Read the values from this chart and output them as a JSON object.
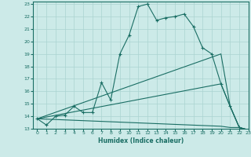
{
  "xlabel": "Humidex (Indice chaleur)",
  "ylabel": "",
  "xlim": [
    -0.5,
    23
  ],
  "ylim": [
    13,
    23.2
  ],
  "background_color": "#cceae8",
  "grid_color": "#aad4d0",
  "line_color": "#1a6e64",
  "line1_x": [
    0,
    1,
    2,
    3,
    4,
    5,
    6,
    7,
    8,
    9,
    10,
    11,
    12,
    13,
    14,
    15,
    16,
    17,
    18,
    19,
    20,
    21,
    22,
    23
  ],
  "line1_y": [
    13.8,
    13.3,
    14.0,
    14.1,
    14.8,
    14.3,
    14.3,
    16.7,
    15.3,
    19.0,
    20.5,
    22.8,
    23.0,
    21.7,
    21.9,
    22.0,
    22.2,
    21.2,
    19.5,
    19.0,
    16.6,
    14.8,
    13.1,
    12.9
  ],
  "line2_x": [
    0,
    20,
    21,
    22,
    23
  ],
  "line2_y": [
    13.8,
    19.0,
    14.8,
    13.1,
    12.9
  ],
  "line3_x": [
    0,
    20,
    21,
    22,
    23
  ],
  "line3_y": [
    13.8,
    16.6,
    14.8,
    13.1,
    12.9
  ],
  "line4_x": [
    0,
    20,
    21,
    22,
    23
  ],
  "line4_y": [
    13.8,
    13.2,
    13.1,
    13.1,
    12.9
  ],
  "yticks": [
    13,
    14,
    15,
    16,
    17,
    18,
    19,
    20,
    21,
    22,
    23
  ],
  "xticks": [
    0,
    1,
    2,
    3,
    4,
    5,
    6,
    7,
    8,
    9,
    10,
    11,
    12,
    13,
    14,
    15,
    16,
    17,
    18,
    19,
    20,
    21,
    22,
    23
  ]
}
